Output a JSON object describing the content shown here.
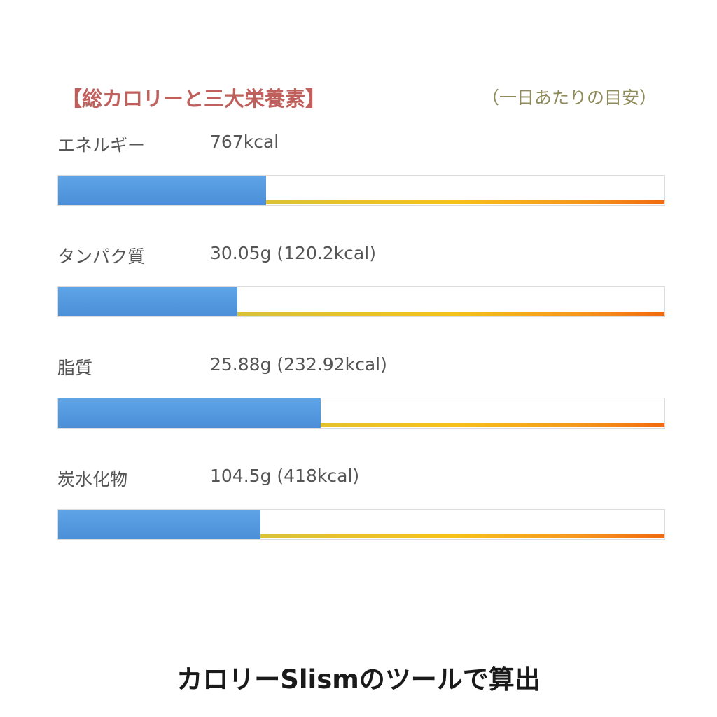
{
  "chart_data": {
    "type": "bar",
    "title": "【総カロリーと三大栄養素】",
    "subtitle": "（一日あたりの目安）",
    "categories": [
      "エネルギー",
      "タンパク質",
      "脂質",
      "炭水化物"
    ],
    "value_labels": [
      "767kcal",
      "30.05g (120.2kcal)",
      "25.88g (232.92kcal)",
      "104.5g (418kcal)"
    ],
    "values": [
      767,
      30.05,
      25.88,
      104.5
    ],
    "fill_fraction": [
      0.343,
      0.296,
      0.433,
      0.334
    ],
    "colors": {
      "fill": "#4b8fd8",
      "title": "#c0605c",
      "subtitle": "#8e8a5a"
    },
    "grid": false
  },
  "footer": {
    "text": "カロリーSlismのツールで算出"
  }
}
